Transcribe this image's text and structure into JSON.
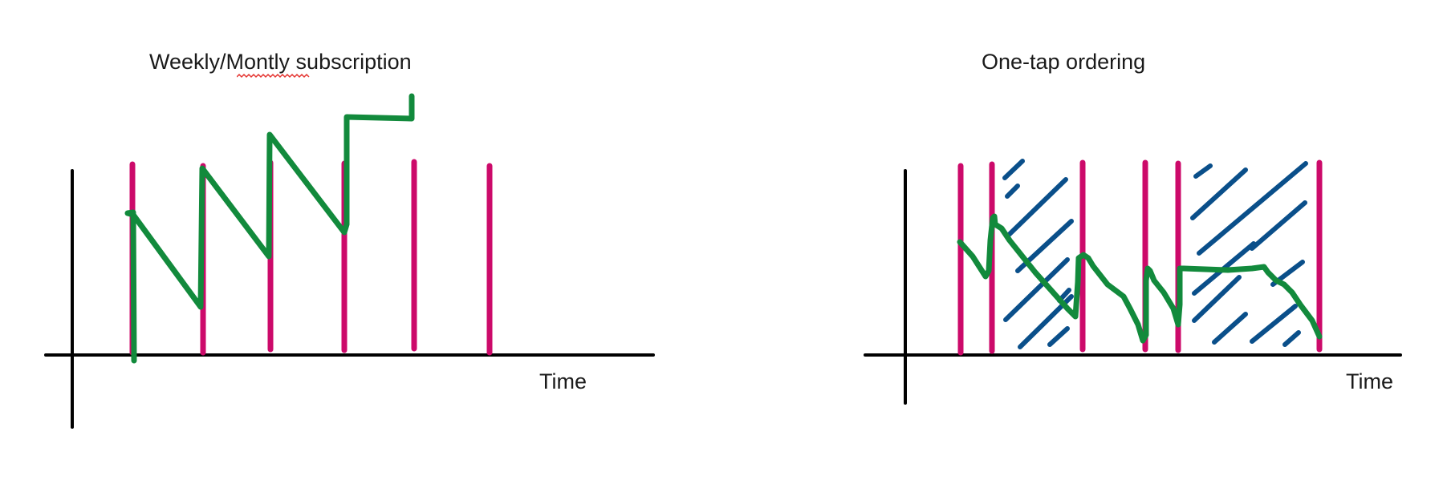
{
  "colors": {
    "axis": "#000000",
    "order_line": "#cc0a6a",
    "inventory_line": "#128a3c",
    "hatch": "#0a4f8a",
    "spellcheck_squiggle": "#e53935"
  },
  "panels": [
    {
      "id": "subscription",
      "title": "Weekly/Montly subscription",
      "misspelled_word": "Montly",
      "x_axis_label": "Time"
    },
    {
      "id": "one-tap",
      "title": "One-tap ordering",
      "x_axis_label": "Time"
    }
  ]
}
